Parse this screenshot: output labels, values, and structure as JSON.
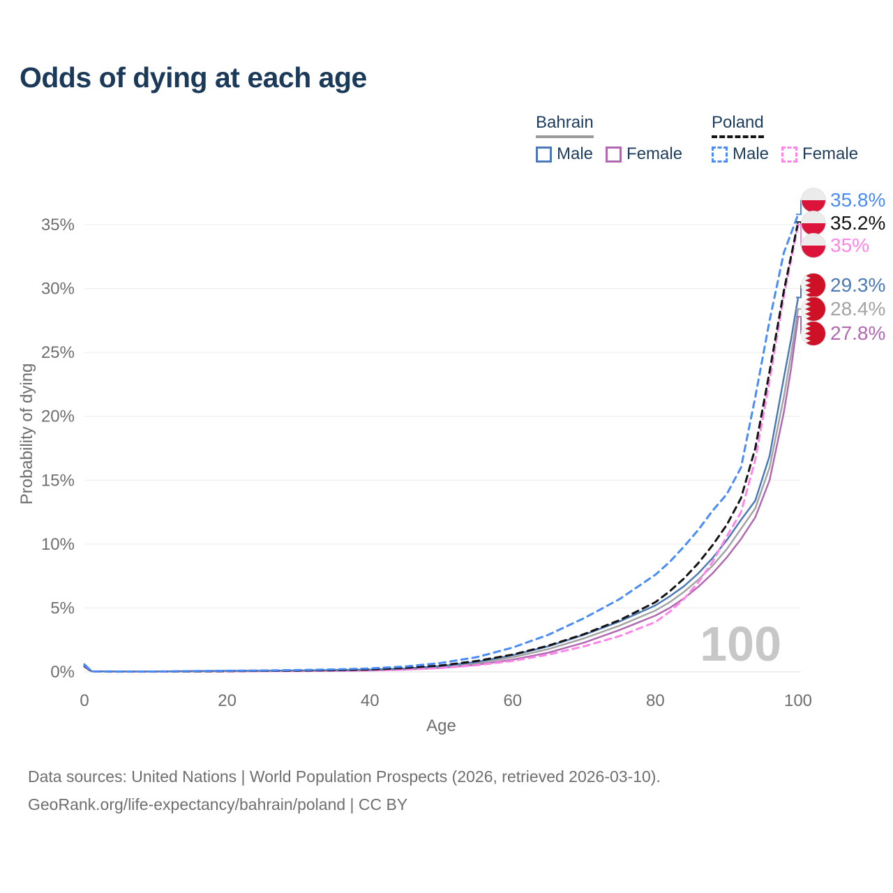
{
  "header": {
    "title": "Odds of dying at each age"
  },
  "legend": {
    "groups": [
      {
        "label": "Bahrain",
        "line_style": "solid",
        "line_color": "#9b9b9b",
        "items": [
          {
            "label": "Male",
            "color": "#4b79b7",
            "dash": false
          },
          {
            "label": "Female",
            "color": "#b168b1",
            "dash": false
          }
        ]
      },
      {
        "label": "Poland",
        "line_style": "dashed",
        "line_color": "#141414",
        "items": [
          {
            "label": "Male",
            "color": "#4a8cf7",
            "dash": true
          },
          {
            "label": "Female",
            "color": "#ff84e8",
            "dash": true
          }
        ]
      }
    ]
  },
  "chart_data": {
    "type": "line",
    "title": "Odds of dying at each age",
    "xlabel": "Age",
    "ylabel": "Probability of dying",
    "xlim": [
      0,
      100
    ],
    "ylim": [
      0,
      37
    ],
    "xticks": [
      0,
      20,
      40,
      60,
      80,
      100
    ],
    "yticks": [
      {
        "value": 0,
        "label": "0%"
      },
      {
        "value": 5,
        "label": "5%"
      },
      {
        "value": 10,
        "label": "10%"
      },
      {
        "value": 15,
        "label": "15%"
      },
      {
        "value": 20,
        "label": "20%"
      },
      {
        "value": 25,
        "label": "25%"
      },
      {
        "value": 30,
        "label": "30%"
      },
      {
        "value": 35,
        "label": "35%"
      }
    ],
    "grid": "horizontal-only",
    "hover_age_watermark": "100",
    "watermark_color": "#c7c7c7",
    "axis_text_color": "#6e6e6e",
    "grid_color": "#ececec",
    "x": [
      0,
      1,
      5,
      10,
      15,
      20,
      25,
      30,
      35,
      40,
      45,
      50,
      55,
      60,
      65,
      70,
      75,
      80,
      82,
      84,
      86,
      88,
      90,
      92,
      94,
      96,
      98,
      99,
      100
    ],
    "series": [
      {
        "name": "Poland Male",
        "country": "Poland",
        "sex": "Male",
        "color": "#4a8cf7",
        "dash": true,
        "end_value_label": "35.8%",
        "end_value": 35.8,
        "values": [
          0.5,
          0.04,
          0.03,
          0.03,
          0.06,
          0.09,
          0.11,
          0.14,
          0.19,
          0.27,
          0.42,
          0.7,
          1.15,
          1.9,
          2.9,
          4.2,
          5.7,
          7.6,
          8.6,
          9.8,
          11.1,
          12.6,
          13.9,
          16.0,
          21.5,
          27.5,
          32.8,
          34.3,
          35.8
        ]
      },
      {
        "name": "Poland Both sexes",
        "country": "Poland",
        "sex": "Both",
        "color": "#141414",
        "dash": true,
        "end_value_label": "35.2%",
        "end_value": 35.2,
        "values": [
          0.45,
          0.03,
          0.02,
          0.02,
          0.04,
          0.06,
          0.08,
          0.1,
          0.13,
          0.18,
          0.3,
          0.5,
          0.85,
          1.35,
          2.05,
          2.95,
          4.05,
          5.45,
          6.3,
          7.3,
          8.5,
          9.9,
          11.5,
          13.6,
          17.5,
          23.5,
          29.8,
          32.5,
          35.2
        ]
      },
      {
        "name": "Poland Female",
        "country": "Poland",
        "sex": "Female",
        "color": "#ff84e8",
        "dash": true,
        "end_value_label": "35%",
        "end_value": 35.0,
        "values": [
          0.4,
          0.03,
          0.02,
          0.02,
          0.03,
          0.04,
          0.05,
          0.06,
          0.08,
          0.11,
          0.18,
          0.3,
          0.52,
          0.85,
          1.35,
          2.0,
          2.8,
          3.9,
          4.7,
          5.7,
          7.0,
          8.6,
          10.6,
          12.5,
          16.6,
          22.8,
          29.4,
          32.2,
          35.0
        ]
      },
      {
        "name": "Bahrain Male",
        "country": "Bahrain",
        "sex": "Male",
        "color": "#4b79b7",
        "dash": false,
        "end_value_label": "29.3%",
        "end_value": 29.3,
        "values": [
          0.6,
          0.05,
          0.03,
          0.03,
          0.06,
          0.08,
          0.09,
          0.11,
          0.14,
          0.18,
          0.27,
          0.45,
          0.78,
          1.3,
          2.0,
          2.9,
          3.95,
          5.2,
          5.9,
          6.7,
          7.7,
          8.9,
          10.3,
          11.9,
          13.4,
          16.9,
          23.0,
          26.0,
          29.3
        ]
      },
      {
        "name": "Bahrain Both sexes",
        "country": "Bahrain",
        "sex": "Both",
        "color": "#a3a3a3",
        "dash": false,
        "end_value_label": "28.4%",
        "end_value": 28.4,
        "values": [
          0.55,
          0.04,
          0.02,
          0.02,
          0.05,
          0.06,
          0.07,
          0.09,
          0.12,
          0.15,
          0.23,
          0.39,
          0.68,
          1.14,
          1.78,
          2.62,
          3.62,
          4.8,
          5.45,
          6.25,
          7.2,
          8.3,
          9.6,
          11.2,
          12.8,
          16.0,
          21.5,
          24.8,
          28.4
        ]
      },
      {
        "name": "Bahrain Female",
        "country": "Bahrain",
        "sex": "Female",
        "color": "#b168b1",
        "dash": false,
        "end_value_label": "27.8%",
        "end_value": 27.8,
        "values": [
          0.5,
          0.04,
          0.02,
          0.02,
          0.03,
          0.04,
          0.05,
          0.06,
          0.08,
          0.11,
          0.18,
          0.31,
          0.55,
          0.95,
          1.5,
          2.28,
          3.28,
          4.4,
          5.0,
          5.75,
          6.65,
          7.7,
          8.95,
          10.4,
          12.1,
          15.0,
          20.3,
          23.7,
          27.8
        ]
      }
    ],
    "flags": {
      "poland": {
        "top": "#ebebeb",
        "bottom": "#dc143c"
      },
      "bahrain": {
        "white": "#f2f2f2",
        "red": "#ce1126"
      }
    }
  },
  "footer": {
    "line1": "Data sources: United Nations | World Population Prospects (2026, retrieved 2026-03-10).",
    "line2": "GeoRank.org/life-expectancy/bahrain/poland | CC BY"
  }
}
